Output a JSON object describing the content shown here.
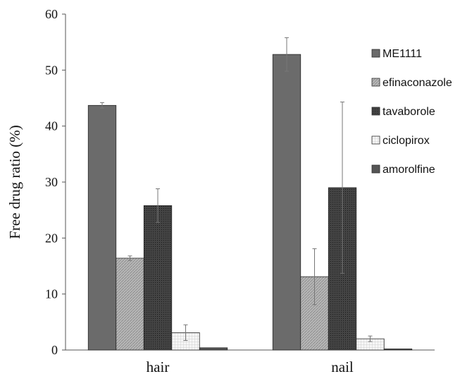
{
  "chart_data": {
    "type": "bar",
    "categories": [
      "hair",
      "nail"
    ],
    "series": [
      {
        "name": "ME1111",
        "values": [
          43.7,
          52.8
        ],
        "errors": [
          0.5,
          3.0
        ],
        "color": "#6b6b6b",
        "pattern": "solid"
      },
      {
        "name": "efinaconazole",
        "values": [
          16.4,
          13.1
        ],
        "errors": [
          0.4,
          5.0
        ],
        "color": "#b5b5b5",
        "pattern": "diagonal"
      },
      {
        "name": "tavaborole",
        "values": [
          25.8,
          29.0
        ],
        "errors": [
          3.0,
          15.3
        ],
        "color": "#3f3f3f",
        "pattern": "dots"
      },
      {
        "name": "ciclopirox",
        "values": [
          3.1,
          2.0
        ],
        "errors": [
          1.4,
          0.5
        ],
        "color": "#f2f2f2",
        "pattern": "grid"
      },
      {
        "name": "amorolfine",
        "values": [
          0.4,
          0.2
        ],
        "errors": [
          0.0,
          0.0
        ],
        "color": "#555555",
        "pattern": "solid"
      }
    ],
    "ylabel": "Free drug ratio  (%)",
    "xlabel": "",
    "ylim": [
      0,
      60
    ],
    "yticks": [
      0,
      10,
      20,
      30,
      40,
      50,
      60
    ],
    "grid": false,
    "legend": "right"
  }
}
